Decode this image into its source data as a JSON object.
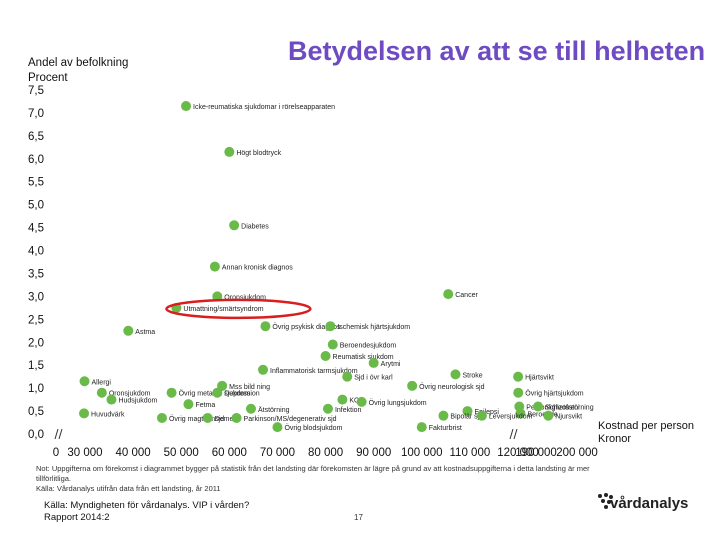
{
  "chart_data": {
    "type": "scatter",
    "title": "Betydelsen av att se till helheten",
    "ylabel": [
      "Andel av befolkning",
      "Procent"
    ],
    "xlabel": [
      "Kostnad per person",
      "Kronor"
    ],
    "ylim": [
      0,
      7.5
    ],
    "y_ticks": [
      "0,0",
      "0,5",
      "1,0",
      "1,5",
      "2,0",
      "2,5",
      "3,0",
      "3,5",
      "4,0",
      "4,5",
      "5,0",
      "5,5",
      "6,0",
      "6,5",
      "7,0",
      "7,5"
    ],
    "y_tick_values": [
      0,
      0.5,
      1.0,
      1.5,
      2.0,
      2.5,
      3.0,
      3.5,
      4.0,
      4.5,
      5.0,
      5.5,
      6.0,
      6.5,
      7.0,
      7.5
    ],
    "x_ticks": [
      "0",
      "30 000",
      "40 000",
      "50 000",
      "60 000",
      "70 000",
      "80 000",
      "90 000",
      "100 000",
      "110 000",
      "120 000",
      "190 000",
      "200 000"
    ],
    "x_tick_values": [
      0,
      30000,
      40000,
      50000,
      60000,
      70000,
      80000,
      90000,
      100000,
      110000,
      120000,
      190000,
      200000
    ],
    "x_axis_breaks": [
      [
        0,
        30000
      ],
      [
        120000,
        190000
      ]
    ],
    "marker_color": "#6aba4a",
    "highlight_color": "#d81e1e",
    "highlighted_point": "Utmattning/smärtsyndrom",
    "points": [
      {
        "label": "Icke-reumatiska sjukdomar i rörelseapparaten",
        "x": 51000,
        "y": 7.15
      },
      {
        "label": "Högt blodtryck",
        "x": 60000,
        "y": 6.15
      },
      {
        "label": "Diabetes",
        "x": 61000,
        "y": 4.55
      },
      {
        "label": "Annan kronisk diagnos",
        "x": 57000,
        "y": 3.65
      },
      {
        "label": "Cancer",
        "x": 105500,
        "y": 3.05
      },
      {
        "label": "Oronsjukdom",
        "x": 57500,
        "y": 3.0
      },
      {
        "label": "Utmattning/smärtsyndrom",
        "x": 49000,
        "y": 2.75
      },
      {
        "label": "Övrig psykisk diagnos",
        "x": 67500,
        "y": 2.35
      },
      {
        "label": "Ischemisk hjärtsjukdom",
        "x": 81000,
        "y": 2.35
      },
      {
        "label": "Astma",
        "x": 39000,
        "y": 2.25
      },
      {
        "label": "Beroendesjukdom",
        "x": 81500,
        "y": 1.95
      },
      {
        "label": "Reumatisk sjukdom",
        "x": 80000,
        "y": 1.7
      },
      {
        "label": "Arytmi",
        "x": 90000,
        "y": 1.55
      },
      {
        "label": "Inflammatorisk tarmsjukdom",
        "x": 67000,
        "y": 1.4
      },
      {
        "label": "Stroke",
        "x": 107000,
        "y": 1.3
      },
      {
        "label": "Sjd i övr karl",
        "x": 84500,
        "y": 1.25
      },
      {
        "label": "Hjärtsvikt",
        "x": 120500,
        "y": 1.25
      },
      {
        "label": "Allergi",
        "x": 29500,
        "y": 1.15
      },
      {
        "label": "Mss bild ning",
        "x": 58500,
        "y": 1.05
      },
      {
        "label": "Övrig neurologisk sjd",
        "x": 98000,
        "y": 1.05
      },
      {
        "label": "Oronsjukdom",
        "x": 33500,
        "y": 0.9
      },
      {
        "label": "Övrig metabol sjukdom",
        "x": 48000,
        "y": 0.9
      },
      {
        "label": "Depression",
        "x": 57500,
        "y": 0.9
      },
      {
        "label": "Övrig hjärtsjukdom",
        "x": 121000,
        "y": 0.9
      },
      {
        "label": "Hudsjukdom",
        "x": 35500,
        "y": 0.75
      },
      {
        "label": "KOL",
        "x": 83500,
        "y": 0.75
      },
      {
        "label": "Övrig lungsjukdom",
        "x": 87500,
        "y": 0.7
      },
      {
        "label": "Fetma",
        "x": 51500,
        "y": 0.65
      },
      {
        "label": "Personlighetsstörning",
        "x": 125000,
        "y": 0.6
      },
      {
        "label": "Schizofreni",
        "x": 190500,
        "y": 0.6
      },
      {
        "label": "Ätstörning",
        "x": 64500,
        "y": 0.55
      },
      {
        "label": "Infektion",
        "x": 80500,
        "y": 0.55
      },
      {
        "label": "Epilepsi",
        "x": 109500,
        "y": 0.5
      },
      {
        "label": "Beroende",
        "x": 129500,
        "y": 0.45
      },
      {
        "label": "Huvudvärk",
        "x": 29000,
        "y": 0.45
      },
      {
        "label": "Bipolär sjd",
        "x": 104500,
        "y": 0.4
      },
      {
        "label": "Leversjukdom",
        "x": 112500,
        "y": 0.4
      },
      {
        "label": "Njursvikt",
        "x": 193000,
        "y": 0.4
      },
      {
        "label": "Övrig magtarmsjd",
        "x": 46000,
        "y": 0.35
      },
      {
        "label": "Demens",
        "x": 55500,
        "y": 0.35
      },
      {
        "label": "Parkinson/MS/degenerativ sjd",
        "x": 61500,
        "y": 0.35
      },
      {
        "label": "Övrig blodsjukdom",
        "x": 70000,
        "y": 0.15
      },
      {
        "label": "Fakturbrist",
        "x": 100000,
        "y": 0.15
      }
    ]
  },
  "footnote": "Not: Uppgifterna om förekomst i diagrammet bygger på statistik från det landsting där förekomsten är lägre på grund av att kostnadsuppgifterna i detta landsting är mer tillförlitliga.",
  "footnote_source": "Källa: Vårdanalys utifrån data från ett landsting, år 2011",
  "source_line1": "Källa: Myndigheten för vårdanalys. VIP i vården?",
  "source_line2": "Rapport 2014:2",
  "page_number": "17",
  "logo_text": "vårdanalys"
}
